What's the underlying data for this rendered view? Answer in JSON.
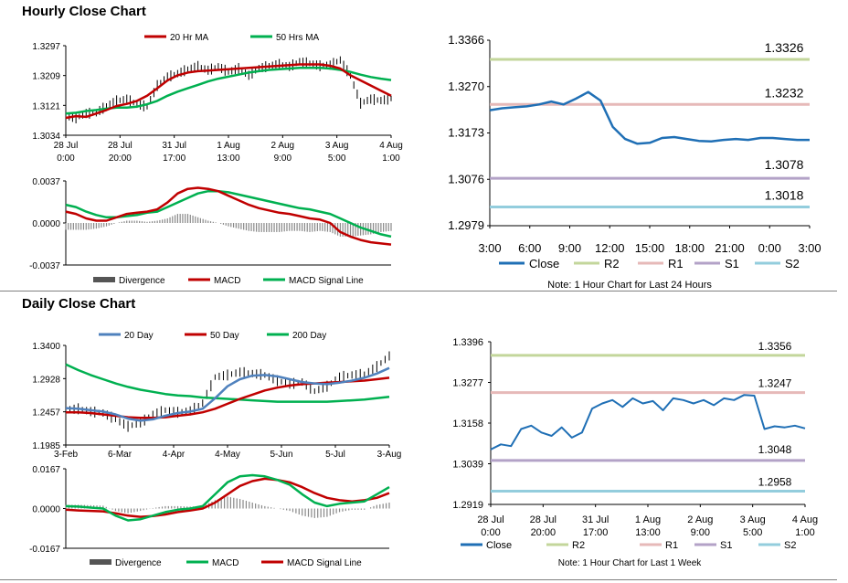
{
  "titles": {
    "hourly": "Hourly Close Chart",
    "daily": "Daily Close Chart"
  },
  "chart_data": [
    {
      "id": "hourly_price",
      "type": "line",
      "x_labels": [
        [
          "28 Jul",
          "0:00"
        ],
        [
          "28 Jul",
          "20:00"
        ],
        [
          "31 Jul",
          "17:00"
        ],
        [
          "1 Aug",
          "13:00"
        ],
        [
          "2 Aug",
          "9:00"
        ],
        [
          "3 Aug",
          "5:00"
        ],
        [
          "4 Aug",
          "1:00"
        ]
      ],
      "y_ticks": [
        "1.3297",
        "1.3209",
        "1.3121",
        "1.3034"
      ],
      "ylim": [
        1.3034,
        1.3297
      ],
      "legend": [
        "20 Hr MA",
        "50 Hrs MA"
      ],
      "series": [
        {
          "name": "Close",
          "color": "#000000",
          "values": [
            1.309,
            1.3085,
            1.3098,
            1.31,
            1.312,
            1.3135,
            1.314,
            1.3125,
            1.3118,
            1.318,
            1.3205,
            1.3215,
            1.3228,
            1.3236,
            1.3225,
            1.3235,
            1.322,
            1.323,
            1.321,
            1.323,
            1.3238,
            1.3242,
            1.3236,
            1.325,
            1.3245,
            1.3238,
            1.324,
            1.3255,
            1.3208,
            1.3128,
            1.314,
            1.3136,
            1.3142
          ]
        },
        {
          "name": "20 Hr MA",
          "color": "#c00000",
          "values": [
            1.3085,
            1.309,
            1.3088,
            1.3098,
            1.3108,
            1.312,
            1.3126,
            1.3135,
            1.315,
            1.3172,
            1.3195,
            1.321,
            1.3218,
            1.3222,
            1.3224,
            1.3226,
            1.3228,
            1.323,
            1.3232,
            1.3234,
            1.3236,
            1.3238,
            1.324,
            1.3242,
            1.3242,
            1.3242,
            1.3238,
            1.323,
            1.321,
            1.3195,
            1.318,
            1.3165,
            1.315
          ]
        },
        {
          "name": "50 Hrs MA",
          "color": "#00b050",
          "values": [
            1.3098,
            1.31,
            1.3105,
            1.3108,
            1.3112,
            1.3115,
            1.3115,
            1.3118,
            1.3125,
            1.3135,
            1.315,
            1.3162,
            1.3172,
            1.3182,
            1.3192,
            1.32,
            1.3206,
            1.3212,
            1.3218,
            1.3222,
            1.3226,
            1.3228,
            1.323,
            1.3232,
            1.3232,
            1.3232,
            1.323,
            1.3226,
            1.322,
            1.3212,
            1.3205,
            1.32,
            1.3196
          ]
        }
      ]
    },
    {
      "id": "hourly_macd",
      "type": "line",
      "y_ticks": [
        "0.0037",
        "0.0000",
        "-0.0037"
      ],
      "ylim": [
        -0.0037,
        0.0037
      ],
      "legend": [
        "Divergence",
        "MACD",
        "MACD Signal Line"
      ],
      "series": [
        {
          "name": "MACD",
          "color": "#c00000",
          "values": [
            0.001,
            0.0008,
            0.0004,
            0.0002,
            0.0002,
            0.0005,
            0.0008,
            0.0009,
            0.001,
            0.0012,
            0.0018,
            0.0026,
            0.003,
            0.0031,
            0.003,
            0.0028,
            0.0024,
            0.002,
            0.0016,
            0.0013,
            0.0011,
            0.0009,
            0.0008,
            0.0006,
            0.0004,
            0.0003,
            0.0,
            -0.0008,
            -0.0012,
            -0.0015,
            -0.0017,
            -0.0018,
            -0.0019
          ]
        },
        {
          "name": "MACD Signal Line",
          "color": "#00b050",
          "values": [
            0.0016,
            0.0014,
            0.001,
            0.0007,
            0.0005,
            0.0005,
            0.0006,
            0.0007,
            0.0009,
            0.001,
            0.0014,
            0.0018,
            0.0022,
            0.0026,
            0.0028,
            0.0028,
            0.0027,
            0.0025,
            0.0023,
            0.0021,
            0.0019,
            0.0017,
            0.0015,
            0.0013,
            0.0012,
            0.001,
            0.0008,
            0.0004,
            0.0,
            -0.0004,
            -0.0007,
            -0.001,
            -0.0012
          ]
        }
      ]
    },
    {
      "id": "hourly_24h",
      "type": "line",
      "x_labels": [
        "3:00",
        "6:00",
        "9:00",
        "12:00",
        "15:00",
        "18:00",
        "21:00",
        "0:00",
        "3:00"
      ],
      "y_ticks": [
        "1.3366",
        "1.3270",
        "1.3173",
        "1.3076",
        "1.2979"
      ],
      "ylim": [
        1.2979,
        1.3366
      ],
      "levels": [
        {
          "name": "R2",
          "value": 1.3326,
          "label": "1.3326",
          "color": "#c3d69b"
        },
        {
          "name": "R1",
          "value": 1.3232,
          "label": "1.3232",
          "color": "#e6b9b8"
        },
        {
          "name": "S1",
          "value": 1.3078,
          "label": "1.3078",
          "color": "#b3a2c7"
        },
        {
          "name": "S2",
          "value": 1.3018,
          "label": "1.3018",
          "color": "#93cddd"
        }
      ],
      "legend": [
        "Close",
        "R2",
        "R1",
        "S1",
        "S2"
      ],
      "series": [
        {
          "name": "Close",
          "color": "#1f6fb5",
          "values": [
            1.322,
            1.3224,
            1.3226,
            1.3228,
            1.3232,
            1.3238,
            1.3232,
            1.3244,
            1.3258,
            1.324,
            1.3185,
            1.316,
            1.315,
            1.3152,
            1.3162,
            1.3164,
            1.316,
            1.3156,
            1.3155,
            1.3158,
            1.316,
            1.3158,
            1.3162,
            1.3162,
            1.316,
            1.3158,
            1.3158
          ]
        }
      ],
      "note": "Note: 1 Hour Chart for Last 24 Hours"
    },
    {
      "id": "daily_price",
      "type": "line",
      "x_labels": [
        "3-Feb",
        "6-Mar",
        "4-Apr",
        "4-May",
        "5-Jun",
        "5-Jul",
        "3-Aug"
      ],
      "y_ticks": [
        "1.3400",
        "1.2928",
        "1.2457",
        "1.1985"
      ],
      "ylim": [
        1.1985,
        1.34
      ],
      "legend": [
        "20 Day",
        "50 Day",
        "200 Day"
      ],
      "series": [
        {
          "name": "Close",
          "color": "#000000",
          "values": [
            1.248,
            1.25,
            1.246,
            1.244,
            1.235,
            1.225,
            1.23,
            1.242,
            1.248,
            1.245,
            1.247,
            1.258,
            1.295,
            1.298,
            1.302,
            1.3,
            1.298,
            1.29,
            1.285,
            1.288,
            1.275,
            1.282,
            1.295,
            1.298,
            1.299,
            1.31,
            1.325
          ]
        },
        {
          "name": "20 Day",
          "color": "#4f81bd",
          "values": [
            1.251,
            1.25,
            1.248,
            1.246,
            1.242,
            1.236,
            1.233,
            1.235,
            1.24,
            1.244,
            1.246,
            1.25,
            1.265,
            1.282,
            1.292,
            1.297,
            1.298,
            1.296,
            1.292,
            1.288,
            1.286,
            1.285,
            1.287,
            1.29,
            1.294,
            1.3,
            1.308
          ]
        },
        {
          "name": "50 Day",
          "color": "#c00000",
          "values": [
            1.245,
            1.245,
            1.244,
            1.242,
            1.24,
            1.238,
            1.237,
            1.237,
            1.238,
            1.24,
            1.242,
            1.245,
            1.25,
            1.257,
            1.264,
            1.27,
            1.276,
            1.28,
            1.283,
            1.285,
            1.286,
            1.287,
            1.288,
            1.289,
            1.29,
            1.292,
            1.294
          ]
        },
        {
          "name": "200 Day",
          "color": "#00b050",
          "values": [
            1.313,
            1.305,
            1.298,
            1.292,
            1.286,
            1.281,
            1.277,
            1.274,
            1.271,
            1.269,
            1.268,
            1.266,
            1.265,
            1.264,
            1.263,
            1.262,
            1.261,
            1.26,
            1.26,
            1.26,
            1.26,
            1.26,
            1.261,
            1.262,
            1.263,
            1.265,
            1.267
          ]
        }
      ]
    },
    {
      "id": "daily_macd",
      "type": "line",
      "y_ticks": [
        "0.0167",
        "0.0000",
        "-0.0167"
      ],
      "ylim": [
        -0.0167,
        0.0167
      ],
      "legend": [
        "Divergence",
        "MACD",
        "MACD Signal Line"
      ],
      "series": [
        {
          "name": "MACD",
          "color": "#00b050",
          "values": [
            0.001,
            0.0008,
            0.0004,
            0.0,
            -0.003,
            -0.005,
            -0.0045,
            -0.003,
            -0.0015,
            -0.0005,
            0.0,
            0.001,
            0.006,
            0.011,
            0.0135,
            0.014,
            0.0135,
            0.012,
            0.01,
            0.006,
            0.0025,
            0.001,
            0.002,
            0.0025,
            0.003,
            0.006,
            0.009
          ]
        },
        {
          "name": "MACD Signal Line",
          "color": "#c00000",
          "values": [
            -0.0005,
            -0.0008,
            -0.001,
            -0.0012,
            -0.002,
            -0.003,
            -0.0035,
            -0.0032,
            -0.0025,
            -0.0015,
            -0.0008,
            0.0,
            0.0025,
            0.006,
            0.0095,
            0.0115,
            0.0125,
            0.012,
            0.011,
            0.009,
            0.0065,
            0.0045,
            0.0035,
            0.003,
            0.0035,
            0.0045,
            0.0065
          ]
        }
      ]
    },
    {
      "id": "daily_week",
      "type": "line",
      "x_labels": [
        [
          "28 Jul",
          "0:00"
        ],
        [
          "28 Jul",
          "20:00"
        ],
        [
          "31 Jul",
          "17:00"
        ],
        [
          "1 Aug",
          "13:00"
        ],
        [
          "2 Aug",
          "9:00"
        ],
        [
          "3 Aug",
          "5:00"
        ],
        [
          "4 Aug",
          "1:00"
        ]
      ],
      "y_ticks": [
        "1.3396",
        "1.3277",
        "1.3158",
        "1.3039",
        "1.2919"
      ],
      "ylim": [
        1.2919,
        1.3396
      ],
      "levels": [
        {
          "name": "R2",
          "value": 1.3356,
          "label": "1.3356",
          "color": "#c3d69b"
        },
        {
          "name": "R1",
          "value": 1.3247,
          "label": "1.3247",
          "color": "#e6b9b8"
        },
        {
          "name": "S1",
          "value": 1.3048,
          "label": "1.3048",
          "color": "#b3a2c7"
        },
        {
          "name": "S2",
          "value": 1.2958,
          "label": "1.2958",
          "color": "#93cddd"
        }
      ],
      "legend": [
        "Close",
        "R2",
        "R1",
        "S1",
        "S2"
      ],
      "series": [
        {
          "name": "Close",
          "color": "#1f6fb5",
          "values": [
            1.308,
            1.3095,
            1.309,
            1.314,
            1.315,
            1.313,
            1.312,
            1.3145,
            1.3115,
            1.313,
            1.32,
            1.3215,
            1.3225,
            1.3205,
            1.323,
            1.3215,
            1.3222,
            1.3195,
            1.323,
            1.3225,
            1.3215,
            1.3225,
            1.321,
            1.323,
            1.3225,
            1.324,
            1.3238,
            1.314,
            1.3148,
            1.3145,
            1.315,
            1.3142
          ]
        }
      ],
      "note": "Note: 1 Hour Chart for Last 1 Week"
    }
  ]
}
